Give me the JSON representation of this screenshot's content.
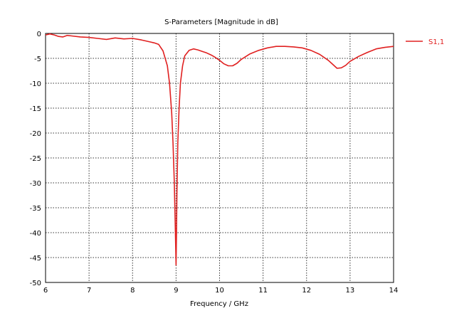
{
  "chart_data": {
    "type": "line",
    "title": "S-Parameters [Magnitude in dB]",
    "xlabel": "Frequency / GHz",
    "ylabel": "",
    "xlim": [
      6,
      14
    ],
    "ylim": [
      -50,
      0
    ],
    "grid": true,
    "legend_position": "top-right",
    "xticks": [
      "6",
      "7",
      "8",
      "9",
      "10",
      "11",
      "12",
      "13",
      "14"
    ],
    "yticks": [
      "0",
      "-5",
      "-10",
      "-15",
      "-20",
      "-25",
      "-30",
      "-35",
      "-40",
      "-45",
      "-50"
    ],
    "series": [
      {
        "name": "S1,1",
        "color": "#e02020",
        "x": [
          6.0,
          6.1,
          6.2,
          6.3,
          6.4,
          6.5,
          6.6,
          6.8,
          7.0,
          7.2,
          7.4,
          7.6,
          7.8,
          8.0,
          8.2,
          8.4,
          8.5,
          8.6,
          8.7,
          8.8,
          8.85,
          8.9,
          8.93,
          8.96,
          8.98,
          9.0,
          9.01,
          9.02,
          9.04,
          9.07,
          9.1,
          9.15,
          9.2,
          9.3,
          9.4,
          9.5,
          9.6,
          9.7,
          9.8,
          9.9,
          10.0,
          10.1,
          10.2,
          10.3,
          10.4,
          10.5,
          10.7,
          10.9,
          11.1,
          11.3,
          11.5,
          11.7,
          11.9,
          12.1,
          12.3,
          12.5,
          12.6,
          12.7,
          12.8,
          12.9,
          13.0,
          13.2,
          13.4,
          13.6,
          13.8,
          14.0
        ],
        "y": [
          -0.3,
          -0.1,
          -0.3,
          -0.6,
          -0.7,
          -0.4,
          -0.5,
          -0.7,
          -0.8,
          -1.0,
          -1.2,
          -0.9,
          -1.1,
          -1.0,
          -1.3,
          -1.7,
          -1.9,
          -2.2,
          -3.5,
          -6.5,
          -10,
          -16,
          -22,
          -30,
          -38,
          -46.5,
          -40,
          -32,
          -22,
          -15,
          -10,
          -6.5,
          -4.5,
          -3.4,
          -3.1,
          -3.3,
          -3.6,
          -3.9,
          -4.3,
          -4.8,
          -5.4,
          -6.1,
          -6.5,
          -6.5,
          -6.0,
          -5.2,
          -4.1,
          -3.4,
          -2.9,
          -2.6,
          -2.6,
          -2.7,
          -2.9,
          -3.4,
          -4.2,
          -5.4,
          -6.2,
          -7.0,
          -6.9,
          -6.4,
          -5.6,
          -4.6,
          -3.8,
          -3.1,
          -2.8,
          -2.6
        ]
      }
    ]
  }
}
